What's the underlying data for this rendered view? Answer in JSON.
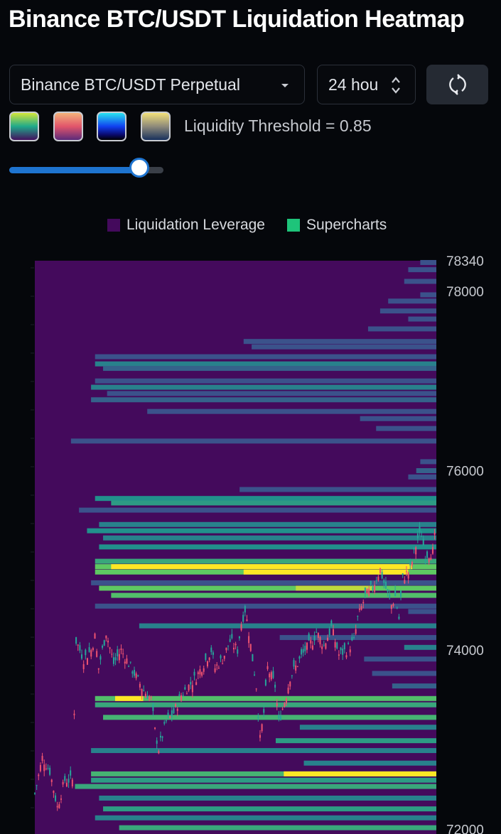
{
  "header": {
    "title": "Binance BTC/USDT Liquidation Heatmap"
  },
  "controls": {
    "pair_select": "Binance BTC/USDT Perpetual",
    "timeframe": "24 hou",
    "threshold_label": "Liquidity Threshold = 0.85",
    "threshold_value": 0.85,
    "colorscales": [
      "viridis",
      "sunset",
      "electric",
      "cividis"
    ]
  },
  "legend": {
    "leverage": "Liquidation Leverage",
    "supercharts": "Supercharts",
    "leverage_color": "#440a5c",
    "supercharts_color": "#1ec47a"
  },
  "chart_data": {
    "type": "heatmap",
    "title": "",
    "ylabel": "",
    "ylim": [
      71950,
      78340
    ],
    "yticks": [
      78340,
      78000,
      76000,
      74000,
      72000
    ],
    "background_color": "#440a5c",
    "levels_colors": {
      "0": "#440a5c",
      "0.25": "#3b528b",
      "0.5": "#21918c",
      "0.75": "#5ec962",
      "1": "#fde725"
    },
    "bands": [
      {
        "price": 78320,
        "start": 0.96,
        "i": 0.3
      },
      {
        "price": 78240,
        "start": 0.93,
        "i": 0.3
      },
      {
        "price": 78110,
        "start": 0.92,
        "i": 0.3
      },
      {
        "price": 77960,
        "start": 0.96,
        "i": 0.3
      },
      {
        "price": 77890,
        "start": 0.88,
        "i": 0.3
      },
      {
        "price": 77780,
        "start": 0.86,
        "i": 0.3
      },
      {
        "price": 77690,
        "start": 0.93,
        "i": 0.3
      },
      {
        "price": 77580,
        "start": 0.83,
        "i": 0.3
      },
      {
        "price": 77440,
        "start": 0.52,
        "i": 0.3
      },
      {
        "price": 77380,
        "start": 0.54,
        "i": 0.3
      },
      {
        "price": 77270,
        "start": 0.15,
        "i": 0.3
      },
      {
        "price": 77190,
        "start": 0.15,
        "i": 0.45
      },
      {
        "price": 77140,
        "start": 0.17,
        "i": 0.35
      },
      {
        "price": 77000,
        "start": 0.15,
        "i": 0.3
      },
      {
        "price": 76930,
        "start": 0.14,
        "i": 0.45
      },
      {
        "price": 76860,
        "start": 0.18,
        "i": 0.3
      },
      {
        "price": 76790,
        "start": 0.14,
        "i": 0.35
      },
      {
        "price": 76660,
        "start": 0.28,
        "i": 0.3
      },
      {
        "price": 76580,
        "start": 0.81,
        "i": 0.3
      },
      {
        "price": 76470,
        "start": 0.85,
        "i": 0.3
      },
      {
        "price": 76330,
        "start": 0.09,
        "i": 0.3
      },
      {
        "price": 76100,
        "start": 0.96,
        "i": 0.3
      },
      {
        "price": 76000,
        "start": 0.95,
        "i": 0.35
      },
      {
        "price": 75930,
        "start": 0.93,
        "i": 0.3
      },
      {
        "price": 75790,
        "start": 0.51,
        "i": 0.3
      },
      {
        "price": 75690,
        "start": 0.15,
        "i": 0.5
      },
      {
        "price": 75640,
        "start": 0.19,
        "i": 0.55
      },
      {
        "price": 75560,
        "start": 0.11,
        "i": 0.3
      },
      {
        "price": 75400,
        "start": 0.16,
        "i": 0.45
      },
      {
        "price": 75330,
        "start": 0.13,
        "i": 0.5
      },
      {
        "price": 75250,
        "start": 0.17,
        "i": 0.45
      },
      {
        "price": 75150,
        "start": 0.16,
        "i": 0.5
      },
      {
        "price": 74990,
        "start": 0.15,
        "i": 0.6
      },
      {
        "price": 74930,
        "start": 0.15,
        "i": 0.75,
        "hot": [
          0.19,
          0.94,
          1
        ]
      },
      {
        "price": 74870,
        "start": 0.15,
        "i": 0.75,
        "hot": [
          0.52,
          0.93,
          1
        ]
      },
      {
        "price": 74750,
        "start": 0.14,
        "i": 0.3
      },
      {
        "price": 74690,
        "start": 0.16,
        "i": 0.75,
        "hot": [
          0.65,
          0.84,
          0.9
        ]
      },
      {
        "price": 74610,
        "start": 0.19,
        "i": 0.7
      },
      {
        "price": 74490,
        "start": 0.15,
        "i": 0.3
      },
      {
        "price": 74430,
        "start": 0.93,
        "i": 0.3
      },
      {
        "price": 74270,
        "start": 0.26,
        "i": 0.45
      },
      {
        "price": 74140,
        "start": 0.61,
        "i": 0.3
      },
      {
        "price": 74030,
        "start": 0.92,
        "i": 0.45
      },
      {
        "price": 73900,
        "start": 0.82,
        "i": 0.3
      },
      {
        "price": 73740,
        "start": 0.84,
        "i": 0.3
      },
      {
        "price": 73600,
        "start": 0.89,
        "i": 0.35
      },
      {
        "price": 73460,
        "start": 0.15,
        "i": 0.7,
        "hot": [
          0.2,
          0.27,
          1
        ]
      },
      {
        "price": 73390,
        "start": 0.15,
        "i": 0.6
      },
      {
        "price": 73250,
        "start": 0.17,
        "i": 0.65
      },
      {
        "price": 73140,
        "start": 0.66,
        "i": 0.45
      },
      {
        "price": 72990,
        "start": 0.6,
        "i": 0.55
      },
      {
        "price": 72880,
        "start": 0.14,
        "i": 0.45
      },
      {
        "price": 72740,
        "start": 0.67,
        "i": 0.45
      },
      {
        "price": 72620,
        "start": 0.14,
        "i": 0.65,
        "hot": [
          0.62,
          1,
          1
        ]
      },
      {
        "price": 72550,
        "start": 0.14,
        "i": 0.55
      },
      {
        "price": 72480,
        "start": 0.1,
        "i": 0.6
      },
      {
        "price": 72350,
        "start": 0.16,
        "i": 0.45
      },
      {
        "price": 72230,
        "start": 0.17,
        "i": 0.55
      },
      {
        "price": 72130,
        "start": 0.15,
        "i": 0.45
      },
      {
        "price": 72020,
        "start": 0.21,
        "i": 0.6
      }
    ],
    "price_path": [
      [
        0,
        72400
      ],
      [
        0.02,
        72800
      ],
      [
        0.04,
        72650
      ],
      [
        0.06,
        72250
      ],
      [
        0.08,
        72550
      ],
      [
        0.1,
        72550
      ],
      [
        0.11,
        74100
      ],
      [
        0.13,
        73900
      ],
      [
        0.15,
        74000
      ],
      [
        0.16,
        74150
      ],
      [
        0.17,
        73800
      ],
      [
        0.19,
        74200
      ],
      [
        0.21,
        73850
      ],
      [
        0.23,
        74000
      ],
      [
        0.25,
        73850
      ],
      [
        0.27,
        73700
      ],
      [
        0.29,
        73550
      ],
      [
        0.31,
        73450
      ],
      [
        0.32,
        73100
      ],
      [
        0.33,
        72900
      ],
      [
        0.35,
        73200
      ],
      [
        0.37,
        73300
      ],
      [
        0.39,
        73500
      ],
      [
        0.41,
        73600
      ],
      [
        0.43,
        73700
      ],
      [
        0.45,
        73850
      ],
      [
        0.47,
        74000
      ],
      [
        0.48,
        73800
      ],
      [
        0.5,
        73900
      ],
      [
        0.52,
        74100
      ],
      [
        0.54,
        74000
      ],
      [
        0.55,
        74300
      ],
      [
        0.56,
        74450
      ],
      [
        0.57,
        74200
      ],
      [
        0.58,
        73900
      ],
      [
        0.59,
        73600
      ],
      [
        0.6,
        73000
      ],
      [
        0.61,
        73300
      ],
      [
        0.62,
        73800
      ],
      [
        0.64,
        73600
      ],
      [
        0.65,
        73200
      ],
      [
        0.67,
        73500
      ],
      [
        0.68,
        73700
      ],
      [
        0.7,
        73850
      ],
      [
        0.72,
        74000
      ],
      [
        0.74,
        74100
      ],
      [
        0.75,
        74200
      ],
      [
        0.77,
        74050
      ],
      [
        0.79,
        74250
      ],
      [
        0.81,
        73950
      ],
      [
        0.83,
        74000
      ],
      [
        0.85,
        74100
      ],
      [
        0.86,
        74350
      ],
      [
        0.88,
        74600
      ],
      [
        0.9,
        74700
      ],
      [
        0.92,
        74900
      ],
      [
        0.93,
        74750
      ],
      [
        0.95,
        74500
      ],
      [
        0.96,
        74600
      ],
      [
        0.97,
        74350
      ],
      [
        0.98,
        74800
      ],
      [
        1,
        74900
      ],
      [
        1.02,
        75250
      ],
      [
        1.03,
        75300
      ],
      [
        1.04,
        75050
      ],
      [
        1.06,
        75100
      ],
      [
        1.07,
        75400
      ]
    ]
  }
}
